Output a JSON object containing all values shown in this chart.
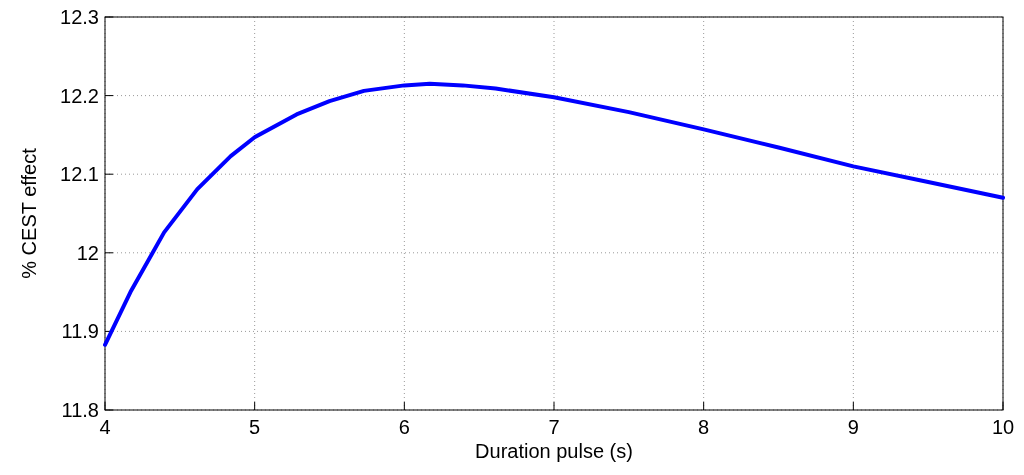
{
  "chart_data": {
    "type": "line",
    "xlabel": "Duration pulse (s)",
    "ylabel": "% CEST effect",
    "x": [
      4,
      4.17,
      4.395,
      4.617,
      4.84,
      5,
      5.28,
      5.5,
      5.73,
      6,
      6.17,
      6.39,
      6.61,
      7,
      7.5,
      8,
      8.5,
      9,
      9.5,
      10
    ],
    "series": [
      {
        "color": "#0000ff",
        "values": [
          11.883,
          11.95,
          12.026,
          12.081,
          12.123,
          12.147,
          12.176,
          12.193,
          12.206,
          12.213,
          12.215,
          12.213,
          12.209,
          12.198,
          12.179,
          12.157,
          12.134,
          12.11,
          12.09,
          12.07
        ]
      }
    ],
    "xlim": [
      4,
      10
    ],
    "xticks": [
      4,
      5,
      6,
      7,
      8,
      9,
      10
    ],
    "ylim": [
      11.8,
      12.3
    ],
    "yticks": [
      11.8,
      11.9,
      12,
      12.1,
      12.2,
      12.3
    ],
    "grid": true,
    "marker": "none",
    "line_style": "solid"
  }
}
